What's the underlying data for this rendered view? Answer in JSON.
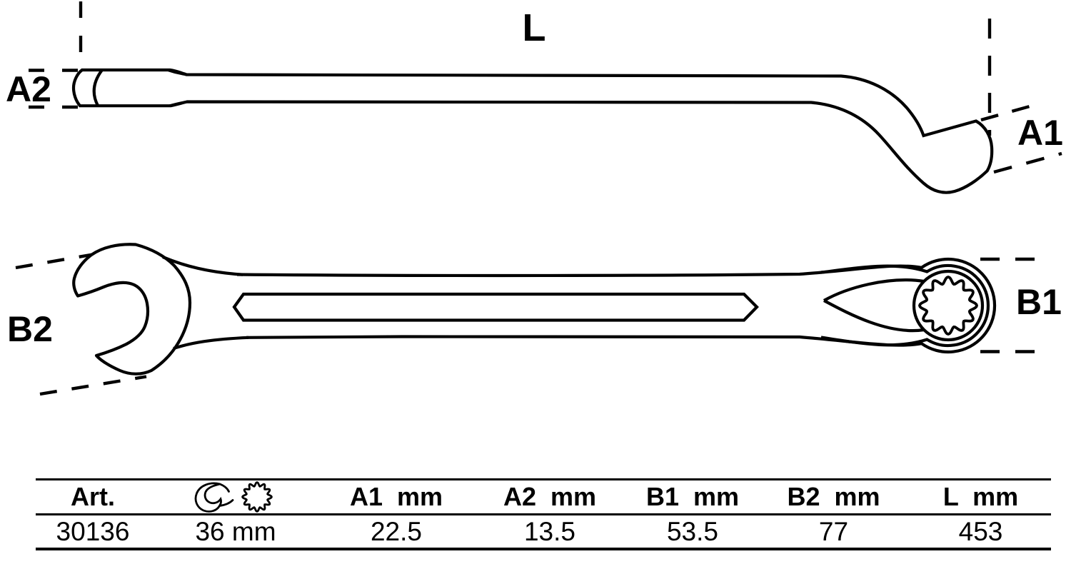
{
  "diagram": {
    "labels": {
      "length": "L",
      "a1": "A1",
      "a2": "A2",
      "b1": "B1",
      "b2": "B2"
    }
  },
  "table": {
    "headers": {
      "art": "Art.",
      "a1": "A1  mm",
      "a2": "A2  mm",
      "b1": "B1  mm",
      "b2": "B2  mm",
      "l": "L  mm"
    },
    "row": {
      "art": "30136",
      "size": "36 mm",
      "a1": "22.5",
      "a2": "13.5",
      "b1": "53.5",
      "b2": "77",
      "l": "453"
    }
  },
  "icons": {
    "open_end": "open-end-wrench-icon",
    "ring": "twelve-point-ring-icon"
  },
  "colors": {
    "line": "#000000",
    "background": "#ffffff"
  }
}
